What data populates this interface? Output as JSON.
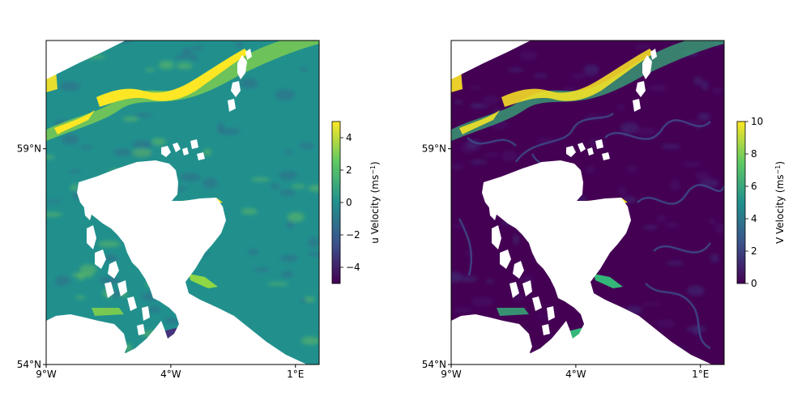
{
  "panels": [
    {
      "id": "u",
      "colors": {
        "sea_base": "#21908d",
        "current": "#fde725",
        "current_mid": "#8fd744",
        "eddy_dark": "#3b528b",
        "eddy_darkest": "#46337e",
        "land": "#ffffff"
      },
      "colorbar": {
        "label_main": "u Velocity (ms",
        "label_sup": "−1",
        "label_end": ")",
        "range": [
          -5,
          5
        ],
        "ticks": [
          {
            "v": 4,
            "label": "4"
          },
          {
            "v": 2,
            "label": "2"
          },
          {
            "v": 0,
            "label": "0"
          },
          {
            "v": -2,
            "label": "−2"
          },
          {
            "v": -4,
            "label": "−4"
          }
        ],
        "stops": [
          "#440154",
          "#3b528b",
          "#21908d",
          "#5ec962",
          "#fde725"
        ]
      }
    },
    {
      "id": "v",
      "colors": {
        "sea_base": "#440154",
        "current": "#fde725",
        "current_mid": "#35b779",
        "eddy_dark": "#3e4a89",
        "eddy_darkest": "#482173",
        "land": "#ffffff"
      },
      "colorbar": {
        "label_main": "V Velocity (ms",
        "label_sup": "−1",
        "label_end": ")",
        "range": [
          0,
          10
        ],
        "ticks": [
          {
            "v": 10,
            "label": "10"
          },
          {
            "v": 8,
            "label": "8"
          },
          {
            "v": 6,
            "label": "6"
          },
          {
            "v": 4,
            "label": "4"
          },
          {
            "v": 2,
            "label": "2"
          },
          {
            "v": 0,
            "label": "0"
          }
        ],
        "stops": [
          "#440154",
          "#3b528b",
          "#21908d",
          "#5ec962",
          "#fde725"
        ]
      }
    }
  ],
  "axes": {
    "x_ticks": [
      {
        "lon": -9,
        "label": "9°W"
      },
      {
        "lon": -4,
        "label": "4°W"
      },
      {
        "lon": 1,
        "label": "1°E"
      }
    ],
    "y_ticks": [
      {
        "lat": 59,
        "label": "59°N"
      },
      {
        "lat": 54,
        "label": "54°N"
      }
    ]
  }
}
